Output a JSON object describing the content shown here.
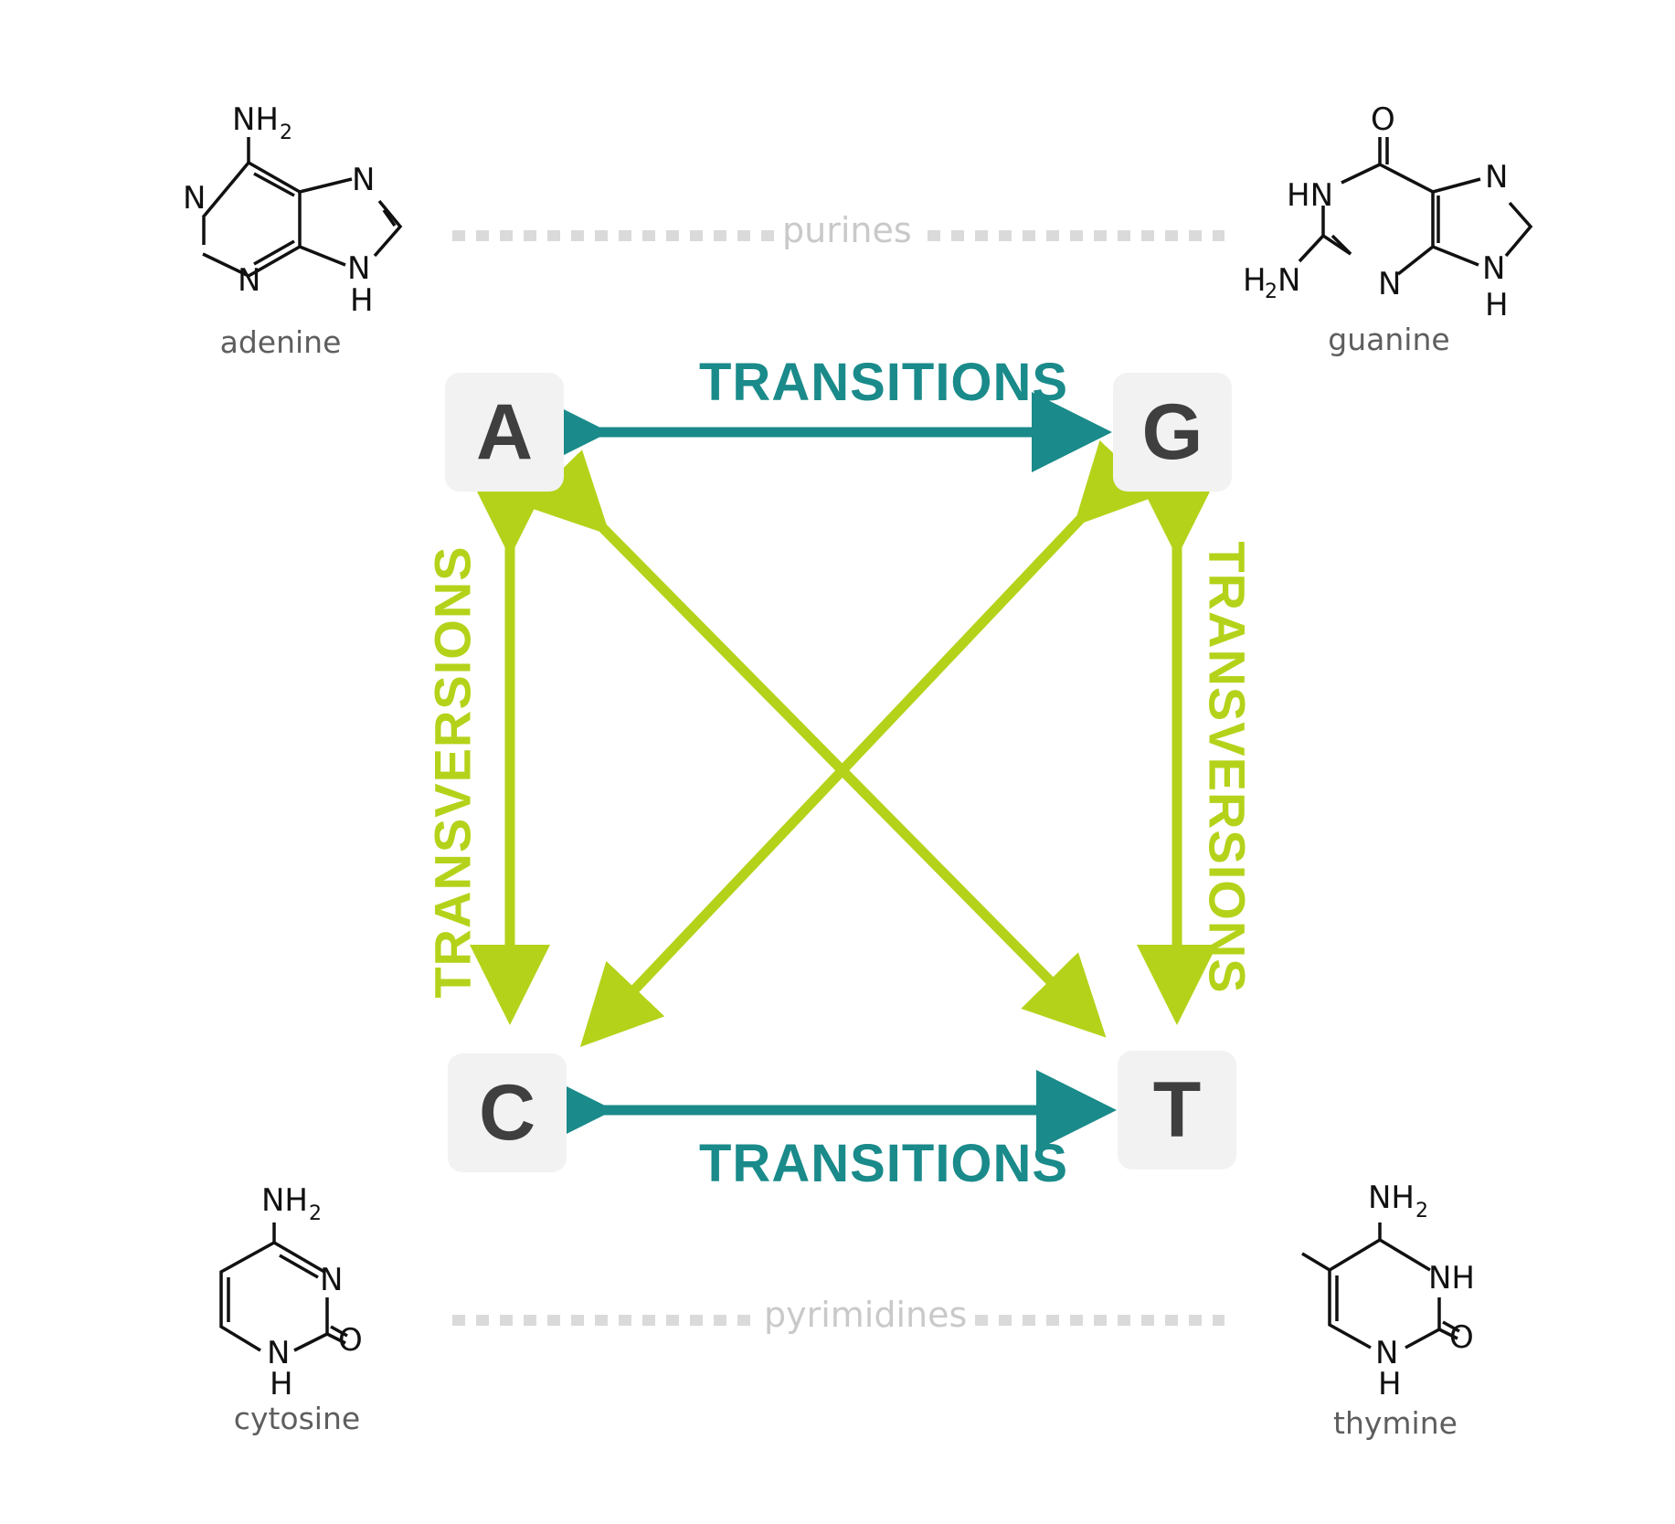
{
  "groups": {
    "purines": "purines",
    "pyrimidines": "pyrimidines"
  },
  "molecules": {
    "adenine": "adenine",
    "guanine": "guanine",
    "cytosine": "cytosine",
    "thymine": "thymine"
  },
  "bases": {
    "A": "A",
    "G": "G",
    "C": "C",
    "T": "T"
  },
  "edges": {
    "top": "TRANSITIONS",
    "bottom": "TRANSITIONS",
    "left": "TRANSVERSIONS",
    "right": "TRANSVERSIONS"
  },
  "colors": {
    "transition": "#1a8a8a",
    "transversion": "#b5d21a",
    "card": "#f3f3f3",
    "base_text": "#3f3f3f"
  },
  "atoms": {
    "n": "N",
    "nh": "NH",
    "hn": "HN",
    "h": "H",
    "o": "O",
    "nh2": "NH",
    "h2n_h": "H",
    "h2n_n": "N",
    "sub2": "2"
  }
}
